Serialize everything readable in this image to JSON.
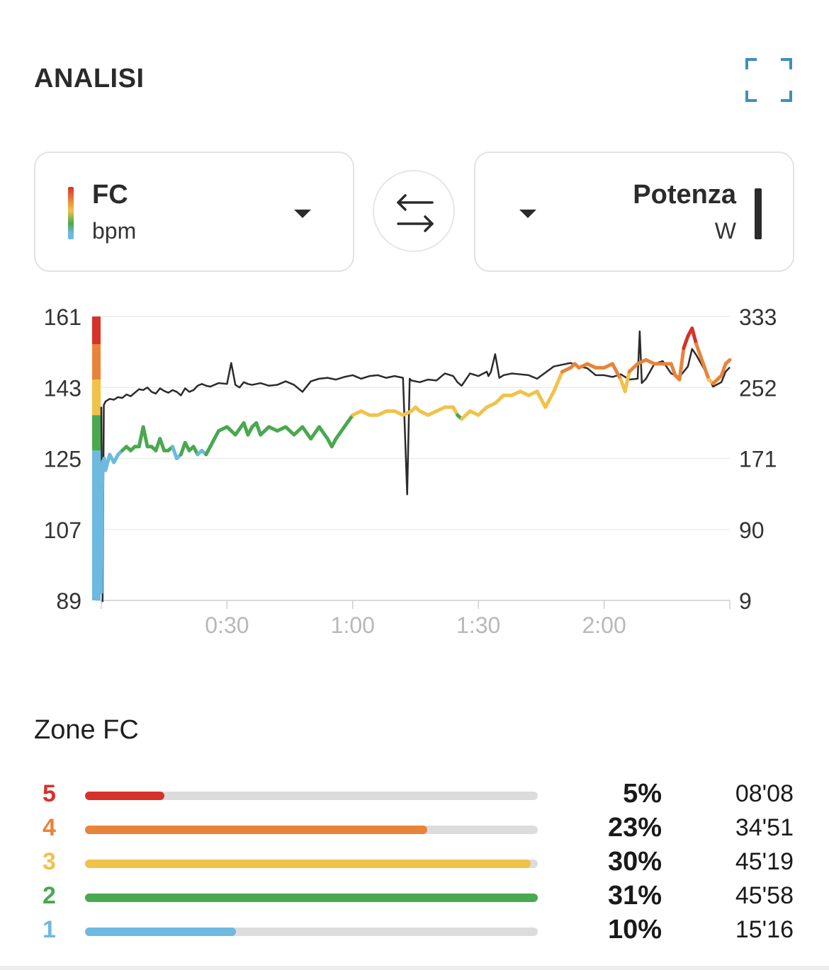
{
  "header": {
    "title": "ANALISI",
    "expand_icon": "expand-icon"
  },
  "left_metric": {
    "name": "FC",
    "unit": "bpm"
  },
  "right_metric": {
    "name": "Potenza",
    "unit": "W"
  },
  "swap_icon": "swap-arrows-icon",
  "chart_data": {
    "type": "line",
    "x_ticks": [
      "0:30",
      "1:00",
      "1:30",
      "2:00"
    ],
    "x_tick_minutes": [
      30,
      60,
      90,
      120
    ],
    "x_range_minutes": [
      0,
      150
    ],
    "left_axis": {
      "label": "bpm",
      "ticks": [
        "161",
        "143",
        "125",
        "107",
        "89"
      ],
      "ylim": [
        89,
        161
      ]
    },
    "right_axis": {
      "label": "W",
      "ticks": [
        "333",
        "252",
        "171",
        "90",
        "9"
      ],
      "ylim": [
        9,
        333
      ]
    },
    "zone_colors": [
      "#6db9e0",
      "#4aa84f",
      "#f1c24a",
      "#e8843a",
      "#d6322a"
    ],
    "hr_zone_bounds_bpm": [
      89,
      127,
      136,
      145,
      154,
      161
    ],
    "series": [
      {
        "name": "FC",
        "unit": "bpm",
        "x_minutes": [
          0,
          0.3,
          0.7,
          1.0,
          2,
          3,
          4,
          5,
          6,
          7,
          8,
          9,
          10,
          11,
          12,
          13,
          14,
          15,
          16,
          17,
          18,
          19,
          20,
          21,
          22,
          23,
          24,
          25,
          26,
          28,
          30,
          32,
          34,
          35,
          36,
          37,
          38,
          40,
          42,
          44,
          46,
          48,
          50,
          52,
          54,
          55,
          56,
          58,
          60,
          62,
          64,
          66,
          68,
          70,
          72,
          74,
          75,
          76,
          78,
          80,
          82,
          84,
          85,
          86,
          88,
          90,
          92,
          94,
          96,
          98,
          100,
          102,
          104,
          105,
          106,
          108,
          110,
          112,
          113,
          114,
          116,
          118,
          120,
          122,
          124,
          125,
          126,
          128,
          130,
          132,
          134,
          136,
          137,
          138,
          139,
          140,
          141,
          142,
          144,
          145,
          146,
          148,
          149,
          150
        ],
        "values": [
          91,
          124,
          125,
          122,
          126,
          124,
          126,
          127,
          128,
          127,
          128,
          128,
          133,
          128,
          128,
          127,
          130,
          127,
          127,
          128,
          125,
          126,
          129,
          127,
          128,
          126,
          127,
          126,
          128,
          132,
          133,
          131,
          134,
          131,
          133,
          134,
          131,
          133,
          132,
          133,
          131,
          133,
          130,
          133,
          130,
          128,
          130,
          133,
          136,
          137,
          136,
          136,
          137,
          137,
          136,
          137,
          138,
          137,
          136,
          137,
          138,
          138,
          136,
          135,
          137,
          136,
          138,
          139,
          141,
          141,
          142,
          141,
          142,
          140,
          138,
          142,
          147,
          148,
          149,
          148,
          149,
          148,
          148,
          149,
          145,
          142,
          147,
          149,
          150,
          149,
          149,
          149,
          146,
          145,
          153,
          156,
          158,
          154,
          148,
          145,
          144,
          146,
          149,
          150
        ]
      },
      {
        "name": "Potenza",
        "unit": "W",
        "x_minutes": [
          0,
          0.3,
          0.6,
          1.0,
          2,
          3,
          4,
          5,
          6,
          7,
          8,
          9,
          10,
          11,
          12,
          13,
          14,
          15,
          16,
          17,
          18,
          19,
          20,
          21,
          22,
          23,
          24,
          25,
          26,
          28,
          30,
          31,
          32,
          33,
          34,
          35,
          36,
          38,
          40,
          42,
          44,
          46,
          48,
          50,
          52,
          54,
          56,
          58,
          60,
          62,
          64,
          66,
          68,
          70,
          72,
          73,
          73.6,
          74,
          76,
          78,
          80,
          82,
          84,
          85,
          86,
          88,
          90,
          92,
          92.4,
          93,
          94,
          95,
          96,
          98,
          100,
          102,
          104,
          106,
          108,
          110,
          112,
          114,
          116,
          118,
          120,
          122,
          124,
          126,
          128,
          128.5,
          129,
          130,
          132,
          134,
          136,
          138,
          140,
          141,
          142,
          144,
          146,
          148,
          149,
          150
        ],
        "values": [
          230,
          8,
          232,
          236,
          239,
          238,
          241,
          240,
          244,
          242,
          246,
          250,
          249,
          252,
          247,
          245,
          251,
          248,
          246,
          249,
          247,
          243,
          251,
          247,
          249,
          254,
          256,
          254,
          253,
          257,
          256,
          280,
          255,
          252,
          258,
          256,
          255,
          257,
          254,
          255,
          259,
          255,
          247,
          259,
          262,
          263,
          261,
          264,
          266,
          262,
          265,
          266,
          263,
          265,
          263,
          130,
          262,
          260,
          258,
          261,
          260,
          268,
          265,
          258,
          254,
          268,
          265,
          270,
          265,
          270,
          290,
          263,
          266,
          268,
          267,
          266,
          262,
          269,
          276,
          278,
          280,
          276,
          274,
          266,
          266,
          264,
          267,
          261,
          262,
          316,
          257,
          262,
          279,
          282,
          268,
          264,
          276,
          296,
          289,
          272,
          253,
          258,
          270,
          275
        ]
      }
    ]
  },
  "zones": {
    "title": "Zone FC",
    "rows": [
      {
        "zone": "5",
        "percent": "5%",
        "fraction": 0.176,
        "time": "08'08",
        "color": "#d6322a"
      },
      {
        "zone": "4",
        "percent": "23%",
        "fraction": 0.756,
        "time": "34'51",
        "color": "#e8843a"
      },
      {
        "zone": "3",
        "percent": "30%",
        "fraction": 0.985,
        "time": "45'19",
        "color": "#f1c24a"
      },
      {
        "zone": "2",
        "percent": "31%",
        "fraction": 1.0,
        "time": "45'58",
        "color": "#4aa84f"
      },
      {
        "zone": "1",
        "percent": "10%",
        "fraction": 0.333,
        "time": "15'16",
        "color": "#6db9e0"
      }
    ]
  }
}
